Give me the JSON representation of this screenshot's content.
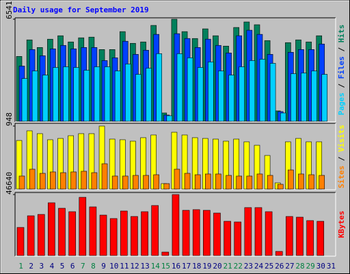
{
  "chart_data": [
    {
      "type": "bar",
      "title": "Daily usage for September 2019",
      "legend_separator": " / ",
      "ylim": [
        0,
        6541
      ],
      "yticks": [
        6541
      ],
      "series": [
        {
          "name": "Hits",
          "color": "#00805c",
          "values": [
            4154,
            5215,
            4729,
            5259,
            5480,
            5083,
            5348,
            5392,
            4596,
            4596,
            5745,
            4994,
            5083,
            6143,
            530,
            6541,
            5745,
            5303,
            5922,
            5480,
            4817,
            6011,
            6364,
            6187,
            5171,
            663,
            5038,
            5215,
            5083,
            5480,
            null
          ]
        },
        {
          "name": "Files",
          "color": "#0040ff",
          "values": [
            3536,
            4597,
            4199,
            4641,
            4862,
            4641,
            4729,
            4729,
            3890,
            4066,
            5127,
            4287,
            4553,
            5569,
            398,
            5613,
            5304,
            4729,
            5260,
            4862,
            4376,
            5481,
            5834,
            5569,
            4287,
            619,
            4420,
            4597,
            4597,
            4950,
            null
          ]
        },
        {
          "name": "Pages",
          "color": "#00d0ff",
          "values": [
            2740,
            3227,
            2961,
            3448,
            3492,
            3448,
            3271,
            3492,
            3492,
            3227,
            3669,
            3006,
            3403,
            4332,
            354,
            4332,
            4066,
            3448,
            3801,
            3227,
            2961,
            3492,
            3890,
            3978,
            3713,
            530,
            3050,
            3094,
            3227,
            3006,
            null
          ]
        }
      ]
    },
    {
      "type": "bar",
      "legend_separator": " / ",
      "ylim": [
        0,
        948
      ],
      "yticks": [
        948
      ],
      "series": [
        {
          "name": "Visits",
          "color": "#ffff00",
          "values": [
            731,
            876,
            834,
            742,
            762,
            803,
            834,
            834,
            948,
            752,
            742,
            721,
            773,
            814,
            82,
            855,
            814,
            773,
            762,
            752,
            721,
            752,
            711,
            659,
            505,
            93,
            711,
            762,
            711,
            711,
            null
          ]
        },
        {
          "name": "Sites",
          "color": "#ff8000",
          "values": [
            196,
            299,
            237,
            258,
            247,
            258,
            268,
            247,
            381,
            196,
            196,
            206,
            206,
            216,
            82,
            299,
            237,
            216,
            227,
            227,
            206,
            196,
            196,
            227,
            206,
            72,
            288,
            227,
            216,
            206,
            null
          ]
        }
      ]
    },
    {
      "type": "bar",
      "ylim": [
        0,
        46640
      ],
      "yticks": [
        46640
      ],
      "series": [
        {
          "name": "KBytes",
          "color": "#ff0000",
          "values": [
            21484,
            30392,
            31440,
            40348,
            36156,
            33536,
            44540,
            37204,
            30916,
            28296,
            34060,
            29868,
            33536,
            38252,
            2620,
            46640,
            34584,
            35108,
            34584,
            32488,
            26200,
            25676,
            36680,
            36680,
            33536,
            3144,
            29868,
            29344,
            26724,
            26200,
            null
          ]
        }
      ],
      "categories": [
        "1",
        "2",
        "3",
        "4",
        "5",
        "6",
        "7",
        "8",
        "9",
        "10",
        "11",
        "12",
        "13",
        "14",
        "15",
        "16",
        "17",
        "18",
        "19",
        "20",
        "21",
        "22",
        "23",
        "24",
        "25",
        "26",
        "27",
        "28",
        "29",
        "30",
        "31"
      ],
      "category_colors": [
        "#008040",
        "#000080",
        "#000080",
        "#000080",
        "#000080",
        "#000080",
        "#008040",
        "#008040",
        "#000080",
        "#000080",
        "#000080",
        "#000080",
        "#000080",
        "#008040",
        "#008040",
        "#000080",
        "#000080",
        "#000080",
        "#000080",
        "#000080",
        "#008040",
        "#008040",
        "#000080",
        "#000080",
        "#000080",
        "#000080",
        "#000080",
        "#008040",
        "#008040",
        "#000080",
        "#000080"
      ]
    }
  ]
}
